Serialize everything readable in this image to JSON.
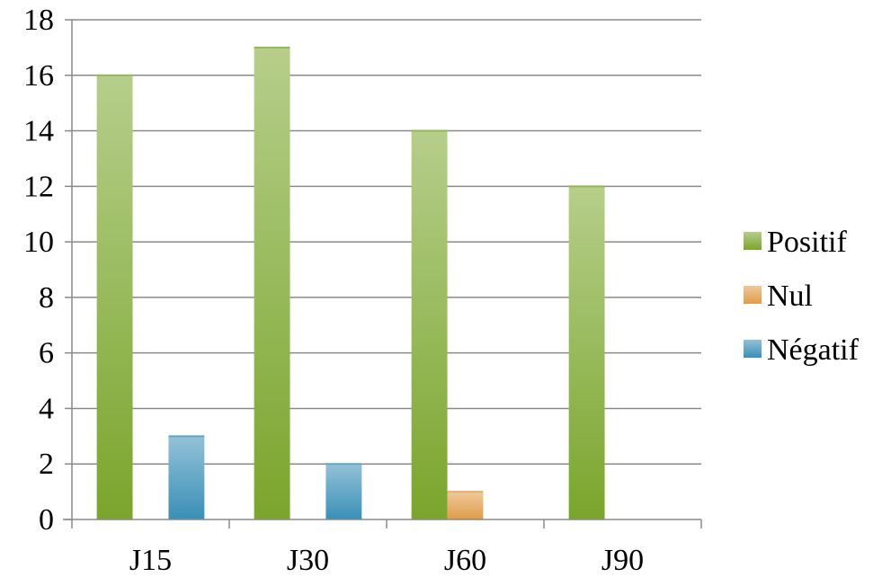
{
  "chart_data": {
    "type": "bar",
    "title": "",
    "xlabel": "",
    "ylabel": "",
    "categories": [
      "J15",
      "J30",
      "J60",
      "J90"
    ],
    "series": [
      {
        "name": "Positif",
        "values": [
          16,
          17,
          14,
          12
        ],
        "color": "#7aa52c"
      },
      {
        "name": "Nul",
        "values": [
          0,
          0,
          1,
          0
        ],
        "color": "#e09c47"
      },
      {
        "name": "Négatif",
        "values": [
          3,
          2,
          0,
          0
        ],
        "color": "#3a8fb7"
      }
    ],
    "ylim": [
      0,
      18
    ],
    "yticks": [
      0,
      2,
      4,
      6,
      8,
      10,
      12,
      14,
      16,
      18
    ],
    "grid": true,
    "legend_position": "right"
  }
}
